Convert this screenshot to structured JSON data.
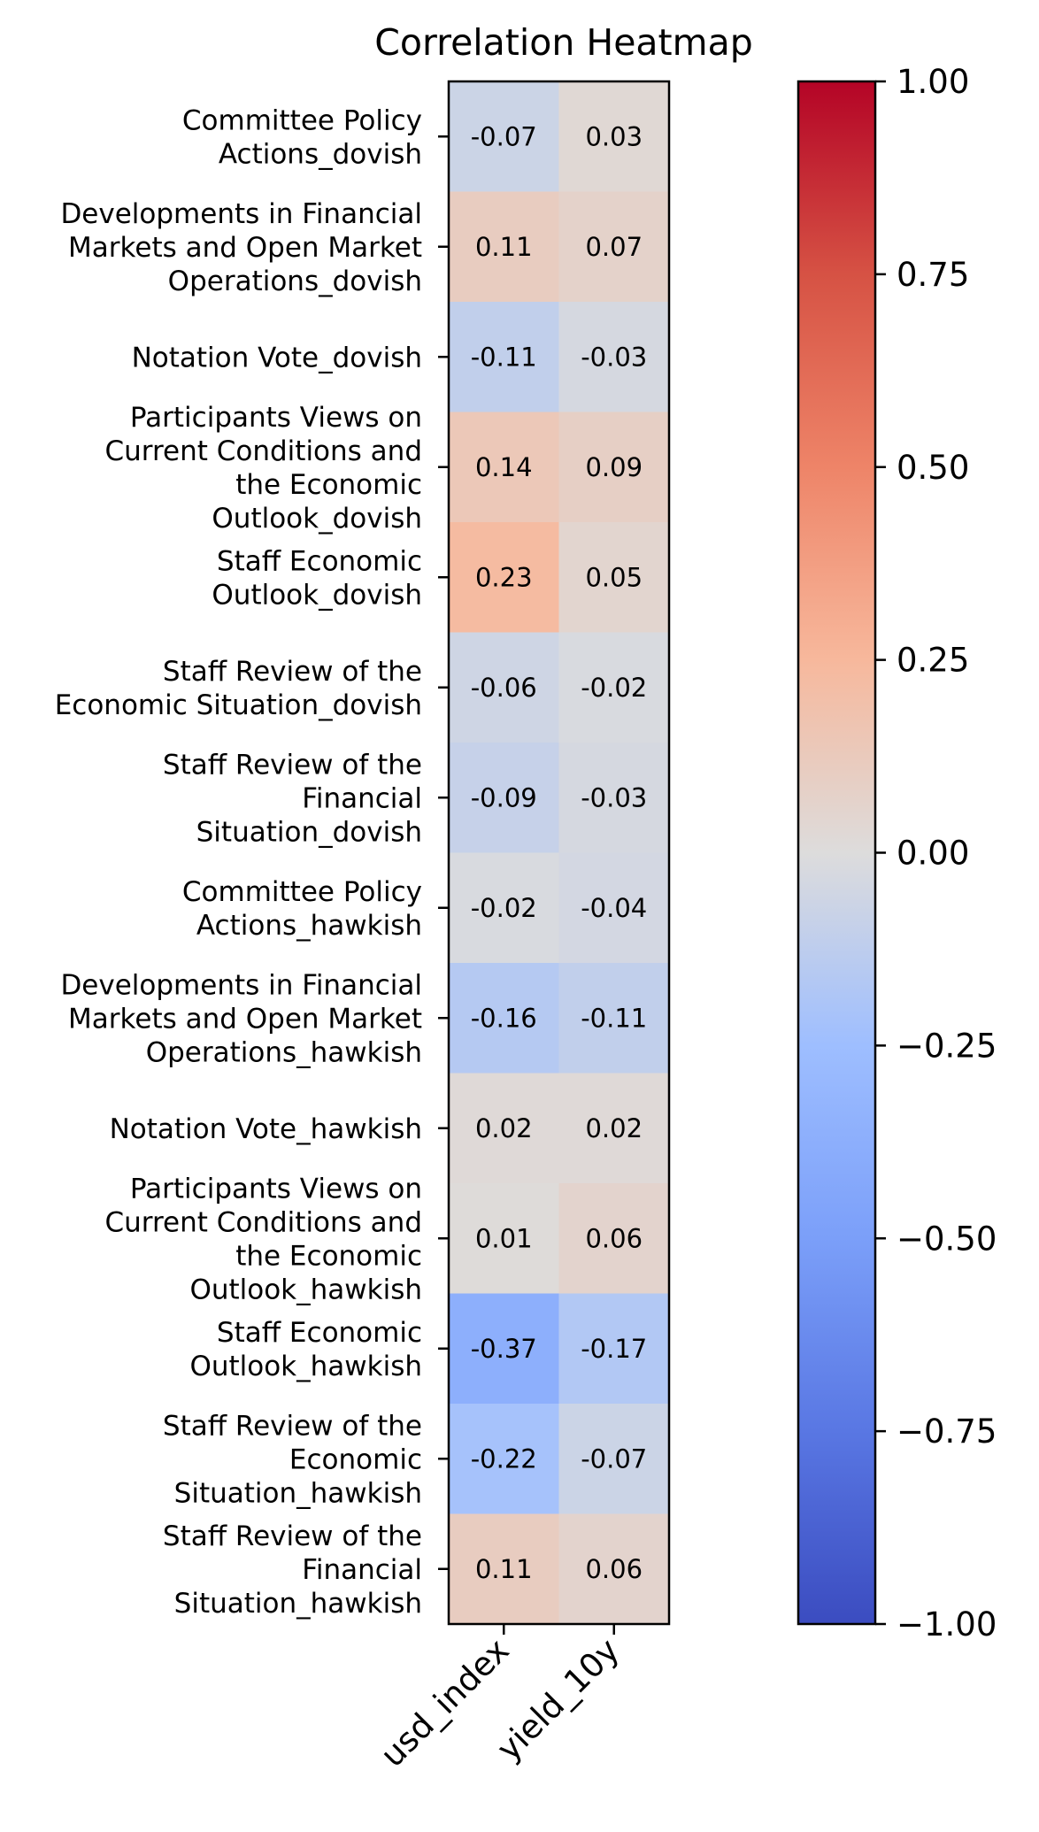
{
  "chart_data": {
    "type": "heatmap",
    "title": "Correlation Heatmap",
    "columns": [
      "usd_index",
      "yield_10y"
    ],
    "rows": [
      [
        "Committee Policy",
        "Actions_dovish"
      ],
      [
        "Developments in Financial",
        "Markets and Open Market",
        "Operations_dovish"
      ],
      [
        "Notation Vote_dovish"
      ],
      [
        "Participants Views on",
        "Current Conditions and",
        "the Economic",
        "Outlook_dovish"
      ],
      [
        "Staff Economic",
        "Outlook_dovish"
      ],
      [
        "Staff Review of the",
        "Economic Situation_dovish"
      ],
      [
        "Staff Review of the",
        "Financial",
        "Situation_dovish"
      ],
      [
        "Committee Policy",
        "Actions_hawkish"
      ],
      [
        "Developments in Financial",
        "Markets and Open Market",
        "Operations_hawkish"
      ],
      [
        "Notation Vote_hawkish"
      ],
      [
        "Participants Views on",
        "Current Conditions and",
        "the Economic",
        "Outlook_hawkish"
      ],
      [
        "Staff Economic",
        "Outlook_hawkish"
      ],
      [
        "Staff Review of the",
        "Economic",
        "Situation_hawkish"
      ],
      [
        "Staff Review of the",
        "Financial",
        "Situation_hawkish"
      ]
    ],
    "values": [
      [
        -0.07,
        0.03
      ],
      [
        0.11,
        0.07
      ],
      [
        -0.11,
        -0.03
      ],
      [
        0.14,
        0.09
      ],
      [
        0.23,
        0.05
      ],
      [
        -0.06,
        -0.02
      ],
      [
        -0.09,
        -0.03
      ],
      [
        -0.02,
        -0.04
      ],
      [
        -0.16,
        -0.11
      ],
      [
        0.02,
        0.02
      ],
      [
        0.01,
        0.06
      ],
      [
        -0.37,
        -0.17
      ],
      [
        -0.22,
        -0.07
      ],
      [
        0.11,
        0.06
      ]
    ],
    "cell_labels": [
      [
        "-0.07",
        "0.03"
      ],
      [
        "0.11",
        "0.07"
      ],
      [
        "-0.11",
        "-0.03"
      ],
      [
        "0.14",
        "0.09"
      ],
      [
        "0.23",
        "0.05"
      ],
      [
        "-0.06",
        "-0.02"
      ],
      [
        "-0.09",
        "-0.03"
      ],
      [
        "-0.02",
        "-0.04"
      ],
      [
        "-0.16",
        "-0.11"
      ],
      [
        "0.02",
        "0.02"
      ],
      [
        "0.01",
        "0.06"
      ],
      [
        "-0.37",
        "-0.17"
      ],
      [
        "-0.22",
        "-0.07"
      ],
      [
        "0.11",
        "0.06"
      ]
    ],
    "colormap": "coolwarm",
    "vmin": -1.0,
    "vmax": 1.0,
    "colorbar_ticks": [
      1.0,
      0.75,
      0.5,
      0.25,
      0.0,
      -0.25,
      -0.5,
      -0.75,
      -1.0
    ],
    "colorbar_tick_labels": [
      "1.00",
      "0.75",
      "0.50",
      "0.25",
      "0.00",
      "−0.25",
      "−0.50",
      "−0.75",
      "−1.00"
    ]
  }
}
